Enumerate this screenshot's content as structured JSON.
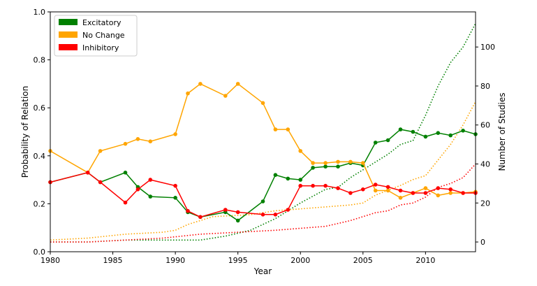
{
  "chart_data": {
    "type": "line",
    "xlabel": "Year",
    "ylabel_left": "Probability of Relation",
    "ylabel_right": "Number of Studies",
    "xlim": [
      1980,
      2014
    ],
    "ylim_left": [
      0,
      1
    ],
    "ylim_right": [
      -5,
      118
    ],
    "x_ticks": [
      "1980",
      "1985",
      "1990",
      "1995",
      "2000",
      "2005",
      "2010"
    ],
    "x_tick_values": [
      1980,
      1985,
      1990,
      1995,
      2000,
      2005,
      2010
    ],
    "y_left_ticks": [
      "0.0",
      "0.2",
      "0.4",
      "0.6",
      "0.8",
      "1.0"
    ],
    "y_left_tick_values": [
      0,
      0.2,
      0.4,
      0.6,
      0.8,
      1.0
    ],
    "y_right_ticks": [
      "0",
      "20",
      "40",
      "60",
      "80",
      "100"
    ],
    "y_right_tick_values": [
      0,
      20,
      40,
      60,
      80,
      100
    ],
    "legend_position": "top-left",
    "series": [
      {
        "name": "Excitatory",
        "color": "#008000",
        "axis": "left",
        "style": "solid-markers",
        "x": [
          1980,
          1983,
          1984,
          1986,
          1987,
          1988,
          1990,
          1991,
          1992,
          1994,
          1995,
          1997,
          1998,
          1999,
          2000,
          2001,
          2002,
          2003,
          2004,
          2005,
          2006,
          2007,
          2008,
          2009,
          2010,
          2011,
          2012,
          2013,
          2014
        ],
        "y": [
          0.29,
          0.33,
          0.29,
          0.33,
          0.27,
          0.23,
          0.225,
          0.165,
          0.145,
          0.165,
          0.13,
          0.21,
          0.32,
          0.305,
          0.3,
          0.35,
          0.355,
          0.355,
          0.37,
          0.36,
          0.455,
          0.465,
          0.51,
          0.5,
          0.48,
          0.495,
          0.485,
          0.505,
          0.49
        ]
      },
      {
        "name": "No Change",
        "color": "#FFA500",
        "axis": "left",
        "style": "solid-markers",
        "x": [
          1980,
          1983,
          1984,
          1986,
          1987,
          1988,
          1990,
          1991,
          1992,
          1994,
          1995,
          1997,
          1998,
          1999,
          2000,
          2001,
          2002,
          2003,
          2004,
          2005,
          2006,
          2007,
          2008,
          2009,
          2010,
          2011,
          2012,
          2013,
          2014
        ],
        "y": [
          0.42,
          0.33,
          0.42,
          0.45,
          0.47,
          0.46,
          0.49,
          0.66,
          0.7,
          0.65,
          0.7,
          0.62,
          0.51,
          0.51,
          0.42,
          0.37,
          0.37,
          0.375,
          0.375,
          0.37,
          0.255,
          0.255,
          0.225,
          0.245,
          0.265,
          0.235,
          0.245,
          0.245,
          0.25
        ]
      },
      {
        "name": "Inhibitory",
        "color": "#FF0000",
        "axis": "left",
        "style": "solid-markers",
        "x": [
          1980,
          1983,
          1984,
          1986,
          1987,
          1988,
          1990,
          1991,
          1992,
          1994,
          1995,
          1997,
          1998,
          1999,
          2000,
          2001,
          2002,
          2003,
          2004,
          2005,
          2006,
          2007,
          2008,
          2009,
          2010,
          2011,
          2012,
          2013,
          2014
        ],
        "y": [
          0.29,
          0.33,
          0.29,
          0.205,
          0.26,
          0.3,
          0.275,
          0.17,
          0.145,
          0.175,
          0.165,
          0.155,
          0.155,
          0.175,
          0.275,
          0.275,
          0.275,
          0.265,
          0.245,
          0.26,
          0.28,
          0.27,
          0.255,
          0.245,
          0.245,
          0.265,
          0.26,
          0.245,
          0.245
        ]
      },
      {
        "name": "Excitatory studies",
        "color": "#008000",
        "axis": "right",
        "style": "dotted",
        "x": [
          1980,
          1983,
          1986,
          1989,
          1992,
          1994,
          1996,
          1998,
          2000,
          2002,
          2003,
          2004,
          2006,
          2007,
          2008,
          2009,
          2010,
          2011,
          2012,
          2013,
          2014
        ],
        "y": [
          0,
          0,
          1,
          1,
          1,
          3,
          6,
          12,
          20,
          27,
          28,
          33,
          41,
          45,
          50,
          52,
          65,
          80,
          92,
          100,
          112
        ]
      },
      {
        "name": "No Change studies",
        "color": "#FFA500",
        "axis": "right",
        "style": "dotted",
        "x": [
          1980,
          1983,
          1986,
          1989,
          1990,
          1991,
          1993,
          1996,
          1998,
          2000,
          2002,
          2004,
          2005,
          2006,
          2008,
          2009,
          2010,
          2011,
          2012,
          2013,
          2014
        ],
        "y": [
          1,
          2,
          4,
          5,
          6,
          9,
          13,
          14,
          16,
          17,
          18,
          19,
          20,
          24,
          29,
          32,
          34,
          42,
          50,
          60,
          72
        ]
      },
      {
        "name": "Inhibitory studies",
        "color": "#FF0000",
        "axis": "right",
        "style": "dotted",
        "x": [
          1980,
          1983,
          1986,
          1989,
          1992,
          1995,
          1998,
          2000,
          2002,
          2004,
          2006,
          2007,
          2008,
          2009,
          2010,
          2011,
          2012,
          2013,
          2014
        ],
        "y": [
          0,
          0,
          1,
          2,
          4,
          5,
          6,
          7,
          8,
          11,
          15,
          16,
          19,
          20,
          23,
          28,
          30,
          33,
          40
        ]
      }
    ],
    "legend": [
      {
        "label": "Excitatory",
        "color": "#008000"
      },
      {
        "label": "No Change",
        "color": "#FFA500"
      },
      {
        "label": "Inhibitory",
        "color": "#FF0000"
      }
    ]
  }
}
